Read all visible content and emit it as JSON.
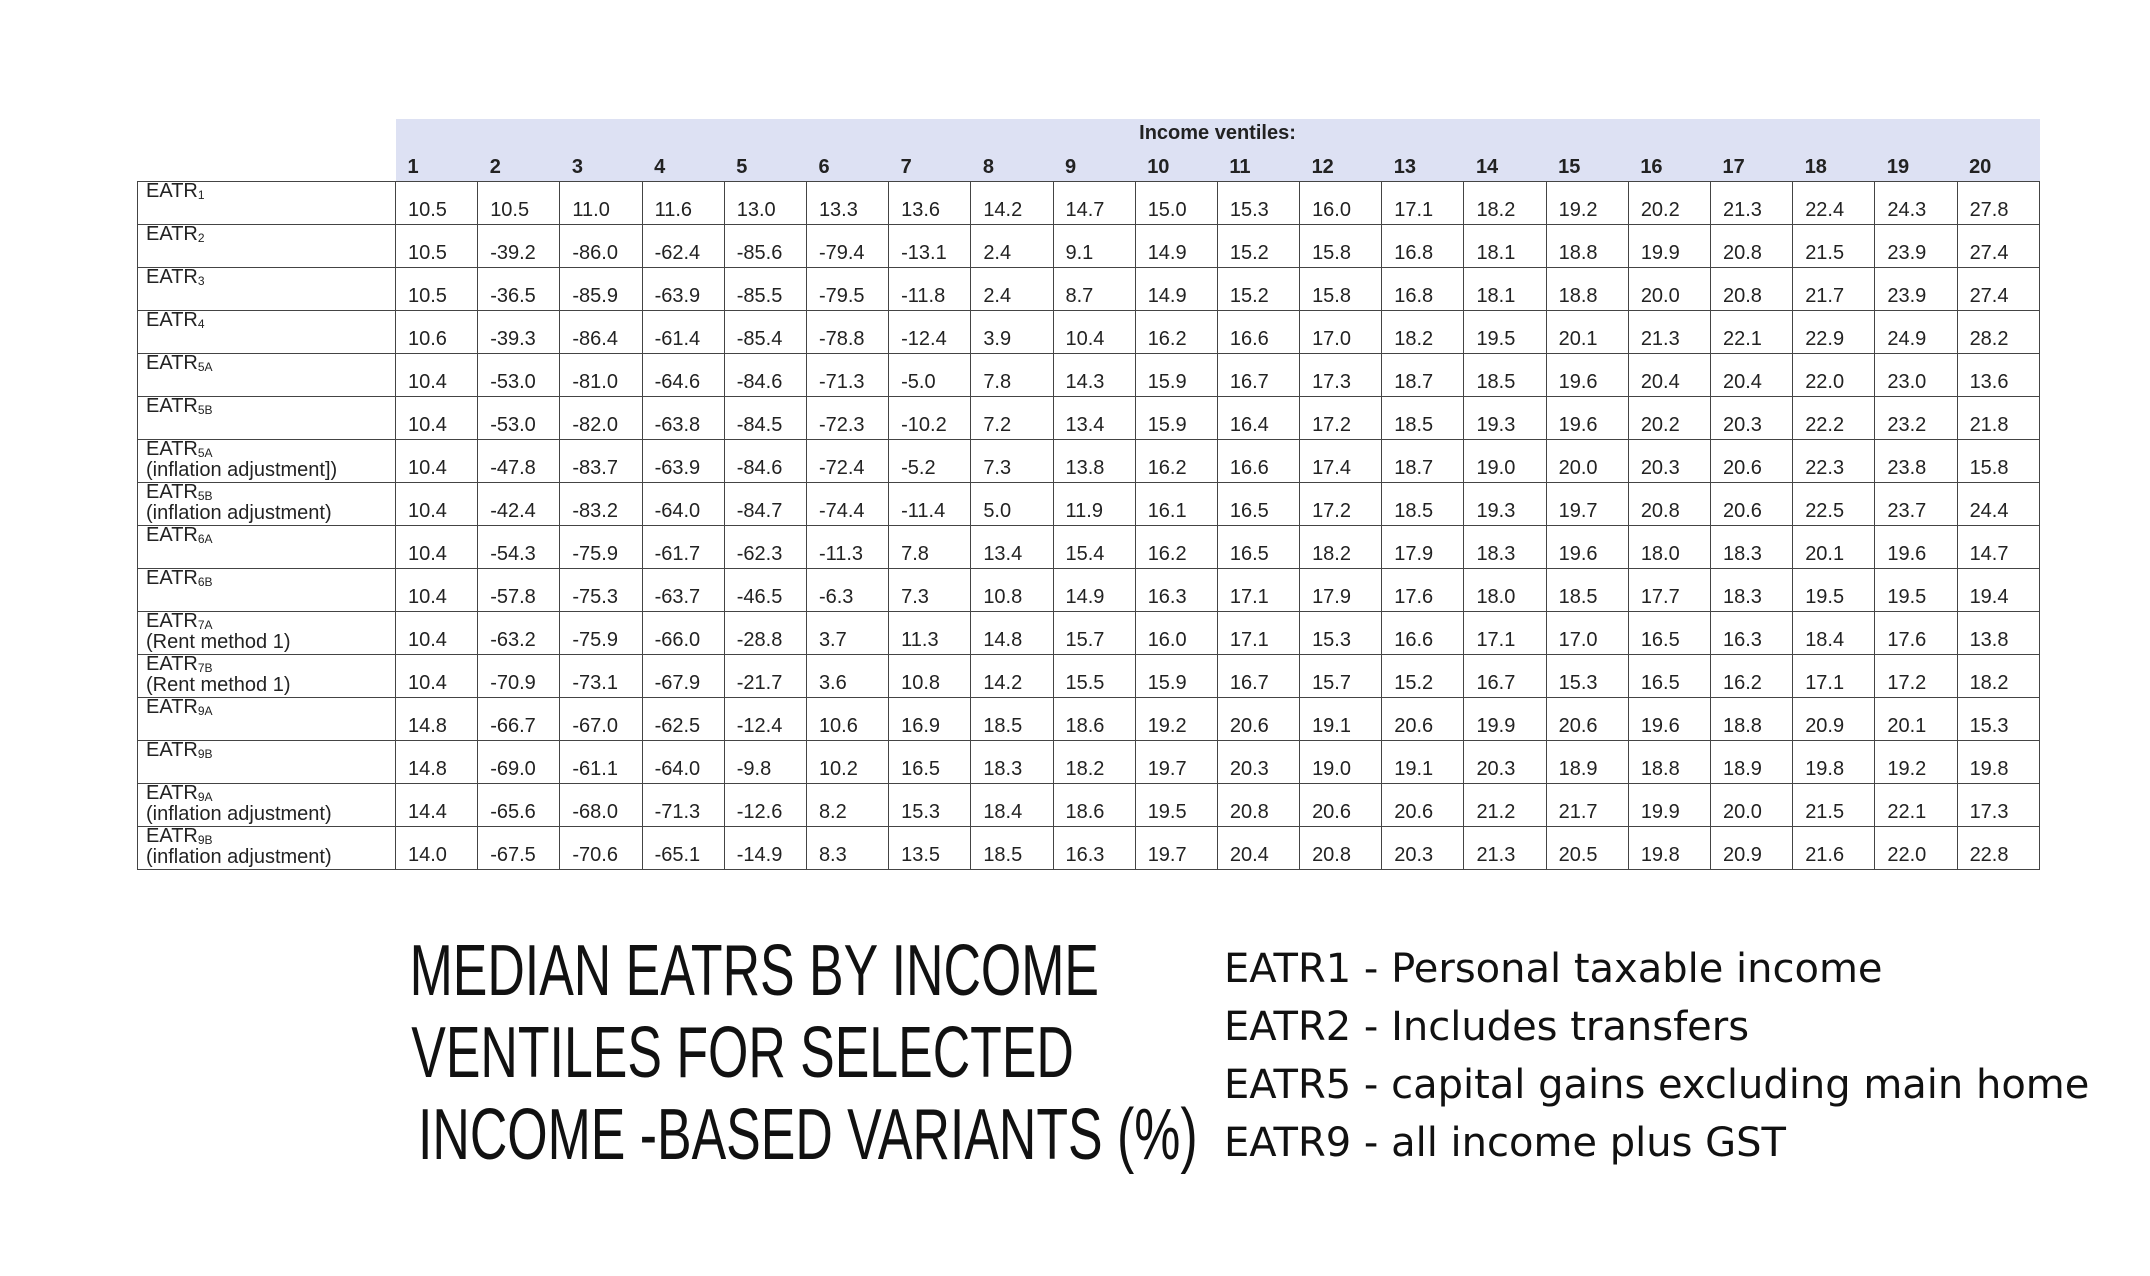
{
  "table": {
    "header": "Income ventiles:",
    "columns": [
      1,
      2,
      3,
      4,
      5,
      6,
      7,
      8,
      9,
      10,
      11,
      12,
      13,
      14,
      15,
      16,
      17,
      18,
      19,
      20
    ],
    "rows": [
      {
        "label": "EATR",
        "sub": "1",
        "values": [
          "10.5",
          "10.5",
          "11.0",
          "11.6",
          "13.0",
          "13.3",
          "13.6",
          "14.2",
          "14.7",
          "15.0",
          "15.3",
          "16.0",
          "17.1",
          "18.2",
          "19.2",
          "20.2",
          "21.3",
          "22.4",
          "24.3",
          "27.8"
        ]
      },
      {
        "label": "EATR",
        "sub": "2",
        "values": [
          "10.5",
          "-39.2",
          "-86.0",
          "-62.4",
          "-85.6",
          "-79.4",
          "-13.1",
          "2.4",
          "9.1",
          "14.9",
          "15.2",
          "15.8",
          "16.8",
          "18.1",
          "18.8",
          "19.9",
          "20.8",
          "21.5",
          "23.9",
          "27.4"
        ]
      },
      {
        "label": "EATR",
        "sub": "3",
        "values": [
          "10.5",
          "-36.5",
          "-85.9",
          "-63.9",
          "-85.5",
          "-79.5",
          "-11.8",
          "2.4",
          "8.7",
          "14.9",
          "15.2",
          "15.8",
          "16.8",
          "18.1",
          "18.8",
          "20.0",
          "20.8",
          "21.7",
          "23.9",
          "27.4"
        ]
      },
      {
        "label": "EATR",
        "sub": "4",
        "values": [
          "10.6",
          "-39.3",
          "-86.4",
          "-61.4",
          "-85.4",
          "-78.8",
          "-12.4",
          "3.9",
          "10.4",
          "16.2",
          "16.6",
          "17.0",
          "18.2",
          "19.5",
          "20.1",
          "21.3",
          "22.1",
          "22.9",
          "24.9",
          "28.2"
        ]
      },
      {
        "label": "EATR",
        "sub": "5A",
        "values": [
          "10.4",
          "-53.0",
          "-81.0",
          "-64.6",
          "-84.6",
          "-71.3",
          "-5.0",
          "7.8",
          "14.3",
          "15.9",
          "16.7",
          "17.3",
          "18.7",
          "18.5",
          "19.6",
          "20.4",
          "20.4",
          "22.0",
          "23.0",
          "13.6"
        ]
      },
      {
        "label": "EATR",
        "sub": "5B",
        "values": [
          "10.4",
          "-53.0",
          "-82.0",
          "-63.8",
          "-84.5",
          "-72.3",
          "-10.2",
          "7.2",
          "13.4",
          "15.9",
          "16.4",
          "17.2",
          "18.5",
          "19.3",
          "19.6",
          "20.2",
          "20.3",
          "22.2",
          "23.2",
          "21.8"
        ]
      },
      {
        "label": "EATR",
        "sub": "5A",
        "note": "(inflation adjustment])",
        "values": [
          "10.4",
          "-47.8",
          "-83.7",
          "-63.9",
          "-84.6",
          "-72.4",
          "-5.2",
          "7.3",
          "13.8",
          "16.2",
          "16.6",
          "17.4",
          "18.7",
          "19.0",
          "20.0",
          "20.3",
          "20.6",
          "22.3",
          "23.8",
          "15.8"
        ]
      },
      {
        "label": "EATR",
        "sub": "5B",
        "note": "(inflation adjustment)",
        "values": [
          "10.4",
          "-42.4",
          "-83.2",
          "-64.0",
          "-84.7",
          "-74.4",
          "-11.4",
          "5.0",
          "11.9",
          "16.1",
          "16.5",
          "17.2",
          "18.5",
          "19.3",
          "19.7",
          "20.8",
          "20.6",
          "22.5",
          "23.7",
          "24.4"
        ]
      },
      {
        "label": "EATR",
        "sub": "6A",
        "values": [
          "10.4",
          "-54.3",
          "-75.9",
          "-61.7",
          "-62.3",
          "-11.3",
          "7.8",
          "13.4",
          "15.4",
          "16.2",
          "16.5",
          "18.2",
          "17.9",
          "18.3",
          "19.6",
          "18.0",
          "18.3",
          "20.1",
          "19.6",
          "14.7"
        ]
      },
      {
        "label": "EATR",
        "sub": "6B",
        "values": [
          "10.4",
          "-57.8",
          "-75.3",
          "-63.7",
          "-46.5",
          "-6.3",
          "7.3",
          "10.8",
          "14.9",
          "16.3",
          "17.1",
          "17.9",
          "17.6",
          "18.0",
          "18.5",
          "17.7",
          "18.3",
          "19.5",
          "19.5",
          "19.4"
        ]
      },
      {
        "label": "EATR",
        "sub": "7A",
        "note": "(Rent method 1)",
        "values": [
          "10.4",
          "-63.2",
          "-75.9",
          "-66.0",
          "-28.8",
          "3.7",
          "11.3",
          "14.8",
          "15.7",
          "16.0",
          "17.1",
          "15.3",
          "16.6",
          "17.1",
          "17.0",
          "16.5",
          "16.3",
          "18.4",
          "17.6",
          "13.8"
        ]
      },
      {
        "label": "EATR",
        "sub": "7B",
        "note": "(Rent method 1)",
        "values": [
          "10.4",
          "-70.9",
          "-73.1",
          "-67.9",
          "-21.7",
          "3.6",
          "10.8",
          "14.2",
          "15.5",
          "15.9",
          "16.7",
          "15.7",
          "15.2",
          "16.7",
          "15.3",
          "16.5",
          "16.2",
          "17.1",
          "17.2",
          "18.2"
        ]
      },
      {
        "label": "EATR",
        "sub": "9A",
        "values": [
          "14.8",
          "-66.7",
          "-67.0",
          "-62.5",
          "-12.4",
          "10.6",
          "16.9",
          "18.5",
          "18.6",
          "19.2",
          "20.6",
          "19.1",
          "20.6",
          "19.9",
          "20.6",
          "19.6",
          "18.8",
          "20.9",
          "20.1",
          "15.3"
        ]
      },
      {
        "label": "EATR",
        "sub": "9B",
        "values": [
          "14.8",
          "-69.0",
          "-61.1",
          "-64.0",
          "-9.8",
          "10.2",
          "16.5",
          "18.3",
          "18.2",
          "19.7",
          "20.3",
          "19.0",
          "19.1",
          "20.3",
          "18.9",
          "18.8",
          "18.9",
          "19.8",
          "19.2",
          "19.8"
        ]
      },
      {
        "label": "EATR",
        "sub": "9A",
        "note": "(inflation adjustment)",
        "values": [
          "14.4",
          "-65.6",
          "-68.0",
          "-71.3",
          "-12.6",
          "8.2",
          "15.3",
          "18.4",
          "18.6",
          "19.5",
          "20.8",
          "20.6",
          "20.6",
          "21.2",
          "21.7",
          "19.9",
          "20.0",
          "21.5",
          "22.1",
          "17.3"
        ]
      },
      {
        "label": "EATR",
        "sub": "9B",
        "note": "(inflation adjustment)",
        "values": [
          "14.0",
          "-67.5",
          "-70.6",
          "-65.1",
          "-14.9",
          "8.3",
          "13.5",
          "18.5",
          "16.3",
          "19.7",
          "20.4",
          "20.8",
          "20.3",
          "21.3",
          "20.5",
          "19.8",
          "20.9",
          "21.6",
          "22.0",
          "22.8"
        ]
      }
    ]
  },
  "title": {
    "lines": [
      "MEDIAN EATRS BY INCOME",
      "VENTILES FOR SELECTED",
      "INCOME  -BASED VARIANTS (%)"
    ]
  },
  "notes": [
    "EATR1 - Personal taxable income",
    "EATR2 - Includes transfers",
    "EATR5 - capital gains excluding main home",
    "EATR9 - all income plus GST"
  ]
}
